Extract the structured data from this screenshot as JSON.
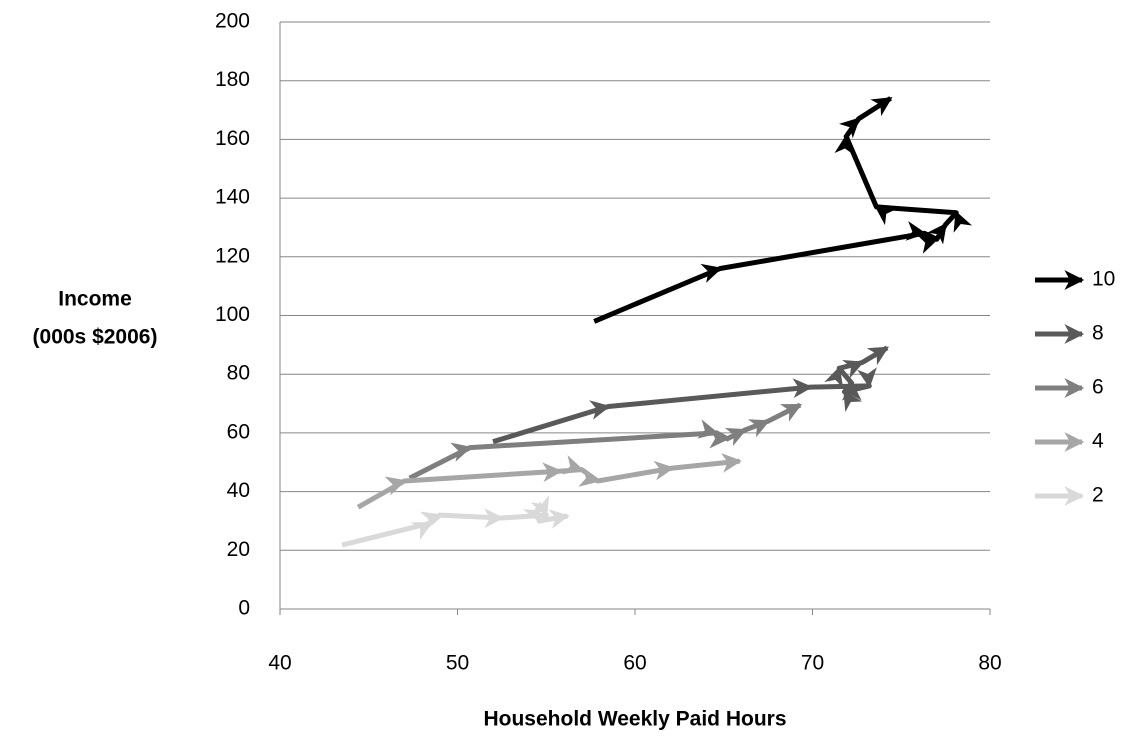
{
  "chart_data": {
    "type": "arrow-line",
    "xlabel": "Household Weekly Paid Hours",
    "ylabel": [
      "Income",
      "(000s $2006)"
    ],
    "xlim": [
      40,
      80
    ],
    "xticks": [
      40,
      50,
      60,
      70,
      80
    ],
    "ylim": [
      0,
      200
    ],
    "yticks": [
      0,
      20,
      40,
      60,
      80,
      100,
      120,
      140,
      160,
      180,
      200
    ],
    "grid": true,
    "legend": "right",
    "series": [
      {
        "name": "10",
        "color": "#000000",
        "x": [
          57.7,
          64.8,
          76.3,
          77.0,
          77.5,
          78.1,
          73.6,
          71.9,
          72.6,
          74.4
        ],
        "values": [
          98,
          116,
          128,
          126,
          131,
          135,
          137,
          161,
          167,
          174
        ]
      },
      {
        "name": "8",
        "color": "#595959",
        "x": [
          52.0,
          58.5,
          69.9,
          73.2,
          71.8,
          72.2,
          71.5,
          72.8,
          74.2
        ],
        "values": [
          57,
          69,
          75.6,
          76,
          74,
          77,
          82,
          84,
          89
        ]
      },
      {
        "name": "6",
        "color": "#7f7f7f",
        "x": [
          47.3,
          50.7,
          64.6,
          65.2,
          66.2,
          67.5,
          69.3
        ],
        "values": [
          44.6,
          55,
          60,
          58,
          61,
          64,
          69.5
        ]
      },
      {
        "name": "4",
        "color": "#a6a6a6",
        "x": [
          44.4,
          47.0,
          55.8,
          57.0,
          57.9,
          62.1,
          65.9
        ],
        "values": [
          34.7,
          43.6,
          47,
          47.5,
          43.6,
          48,
          50.4
        ]
      },
      {
        "name": "2",
        "color": "#d9d9d9",
        "x": [
          43.5,
          48.5,
          49.0,
          52.5,
          55.0,
          54.6,
          56.2
        ],
        "values": [
          21.8,
          29.3,
          32,
          31,
          32,
          30,
          31.7
        ]
      }
    ]
  }
}
